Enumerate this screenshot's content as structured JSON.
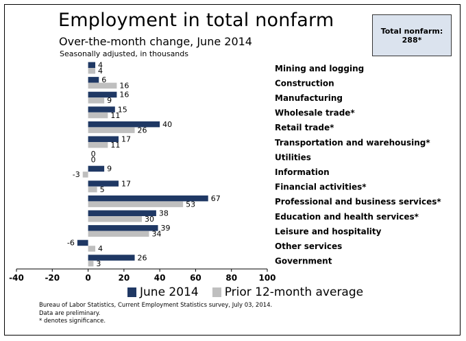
{
  "title": "Employment in total nonfarm",
  "subtitle": "Over-the-month change, June 2014",
  "subsubtitle": "Seasonally adjusted, in thousands",
  "callout": {
    "line1": "Total nonfarm:",
    "line2": "288*"
  },
  "footnotes": [
    "Bureau of Labor Statistics, Current Employment Statistics survey, July 03, 2014.",
    "Data are preliminary.",
    "* denotes significance."
  ],
  "chart_data": {
    "type": "bar",
    "orientation": "horizontal",
    "categories": [
      "Mining and logging",
      "Construction",
      "Manufacturing",
      "Wholesale trade*",
      "Retail trade*",
      "Transportation and warehousing*",
      "Utilities",
      "Information",
      "Financial activities*",
      "Professional and business services*",
      "Education and health services*",
      "Leisure and hospitality",
      "Other services",
      "Government"
    ],
    "series": [
      {
        "name": "June 2014",
        "color": "#1f3864",
        "values": [
          4,
          6,
          16,
          15,
          40,
          17,
          0,
          9,
          17,
          67,
          38,
          39,
          -6,
          26
        ]
      },
      {
        "name": "Prior 12-month average",
        "color": "#bfbfbf",
        "values": [
          4,
          16,
          9,
          11,
          26,
          11,
          0,
          -3,
          5,
          53,
          30,
          34,
          4,
          3
        ]
      }
    ],
    "xlim": [
      -40,
      100
    ],
    "xticks": [
      -40,
      -20,
      0,
      20,
      40,
      60,
      80,
      100
    ],
    "grid": false,
    "legend_position": "bottom"
  }
}
